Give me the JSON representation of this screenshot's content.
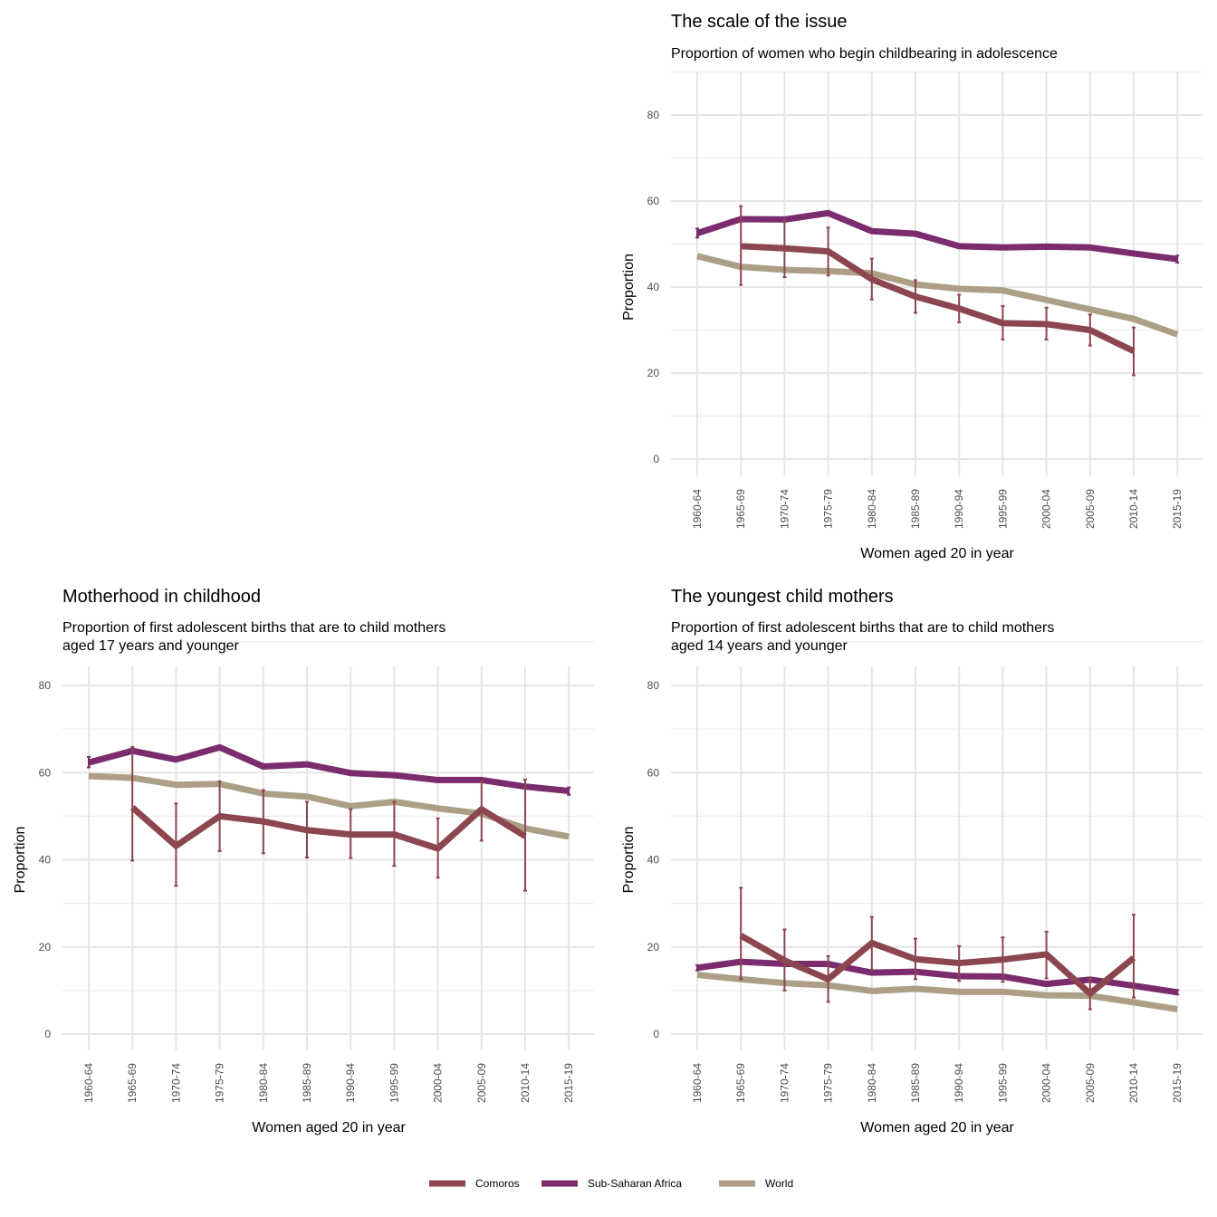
{
  "colors": {
    "Comoros": "#8c4650",
    "Sub-Saharan Africa": "#7b2c6e",
    "World": "#ac9f85"
  },
  "legend": [
    "Comoros",
    "Sub-Saharan Africa",
    "World"
  ],
  "chart_data": [
    {
      "type": "line",
      "title": "The scale of the issue",
      "subtitle": [
        "Proportion of women who begin childbearing in adolescence"
      ],
      "xlabel": "Women aged 20 in year",
      "ylabel": "Proportion",
      "ylim": [
        0,
        80
      ],
      "yticks": [
        0,
        20,
        40,
        60,
        80
      ],
      "categories": [
        "1960-64",
        "1965-69",
        "1970-74",
        "1975-79",
        "1980-84",
        "1985-89",
        "1990-94",
        "1995-99",
        "2000-04",
        "2005-09",
        "2010-14",
        "2015-19"
      ],
      "series": [
        {
          "name": "Sub-Saharan Africa",
          "values": [
            52.5,
            55.8,
            55.7,
            57.2,
            53.0,
            52.4,
            49.5,
            49.2,
            49.4,
            49.2,
            47.8,
            46.5
          ],
          "lower": [
            51.5,
            null,
            null,
            null,
            null,
            null,
            null,
            null,
            null,
            null,
            null,
            45.7
          ],
          "upper": [
            53.6,
            null,
            null,
            null,
            null,
            null,
            null,
            null,
            null,
            null,
            null,
            47.3
          ]
        },
        {
          "name": "World",
          "values": [
            47.2,
            44.7,
            44.0,
            43.7,
            43.2,
            40.6,
            39.6,
            39.2,
            37.0,
            34.8,
            32.6,
            29.0
          ]
        },
        {
          "name": "Comoros",
          "values": [
            null,
            49.5,
            49.0,
            48.3,
            41.8,
            37.8,
            35.0,
            31.6,
            31.4,
            30.0,
            25.1,
            null
          ],
          "lower": [
            null,
            40.5,
            42.3,
            42.7,
            37.1,
            34.0,
            31.8,
            27.8,
            27.8,
            26.4,
            19.5,
            null
          ],
          "upper": [
            null,
            58.8,
            55.7,
            53.8,
            46.6,
            41.6,
            38.2,
            35.6,
            35.2,
            33.6,
            30.6,
            null
          ]
        }
      ]
    },
    {
      "type": "line",
      "title": "Motherhood in childhood",
      "subtitle": [
        "Proportion of first adolescent births that are to child mothers",
        "aged 17 years and younger"
      ],
      "xlabel": "Women aged 20 in year",
      "ylabel": "Proportion",
      "ylim": [
        0,
        80
      ],
      "yticks": [
        0,
        20,
        40,
        60,
        80
      ],
      "categories": [
        "1960-64",
        "1965-69",
        "1970-74",
        "1975-79",
        "1980-84",
        "1985-89",
        "1990-94",
        "1995-99",
        "2000-04",
        "2005-09",
        "2010-14",
        "2015-19"
      ],
      "series": [
        {
          "name": "Sub-Saharan Africa",
          "values": [
            62.3,
            65.0,
            63.0,
            65.8,
            61.4,
            61.9,
            59.9,
            59.4,
            58.3,
            58.3,
            56.8,
            55.8
          ],
          "lower": [
            61.2,
            null,
            null,
            null,
            null,
            null,
            null,
            null,
            null,
            null,
            null,
            54.9
          ],
          "upper": [
            63.6,
            null,
            null,
            null,
            null,
            null,
            null,
            null,
            null,
            null,
            null,
            56.6
          ]
        },
        {
          "name": "World",
          "values": [
            59.2,
            58.8,
            57.2,
            57.4,
            55.2,
            54.5,
            52.3,
            53.3,
            51.8,
            50.6,
            47.2,
            45.3
          ]
        },
        {
          "name": "Comoros",
          "values": [
            null,
            52.0,
            43.2,
            50.0,
            48.8,
            46.8,
            45.8,
            45.8,
            42.6,
            51.6,
            45.4,
            null
          ],
          "lower": [
            null,
            39.8,
            34.0,
            42.0,
            41.5,
            40.5,
            40.4,
            38.6,
            35.9,
            44.4,
            32.9,
            null
          ],
          "upper": [
            null,
            65.9,
            52.9,
            58.0,
            56.0,
            53.3,
            51.6,
            53.3,
            49.5,
            58.0,
            58.4,
            null
          ]
        }
      ]
    },
    {
      "type": "line",
      "title": "The youngest child mothers",
      "subtitle": [
        "Proportion of first adolescent births that are to child mothers",
        "aged 14 years and younger"
      ],
      "xlabel": "Women aged 20 in year",
      "ylabel": "Proportion",
      "ylim": [
        0,
        80
      ],
      "yticks": [
        0,
        20,
        40,
        60,
        80
      ],
      "categories": [
        "1960-64",
        "1965-69",
        "1970-74",
        "1975-79",
        "1980-84",
        "1985-89",
        "1990-94",
        "1995-99",
        "2000-04",
        "2005-09",
        "2010-14",
        "2015-19"
      ],
      "series": [
        {
          "name": "Sub-Saharan Africa",
          "values": [
            15.2,
            16.6,
            16.1,
            16.1,
            14.1,
            14.3,
            13.3,
            13.2,
            11.5,
            12.5,
            11.1,
            9.6
          ],
          "lower": [
            14.6,
            null,
            null,
            null,
            null,
            null,
            null,
            null,
            null,
            null,
            null,
            9.1
          ],
          "upper": [
            15.8,
            null,
            null,
            null,
            null,
            null,
            null,
            null,
            null,
            null,
            null,
            10.1
          ]
        },
        {
          "name": "World",
          "values": [
            13.6,
            12.6,
            11.7,
            11.2,
            9.9,
            10.4,
            9.7,
            9.7,
            8.9,
            8.8,
            7.3,
            5.7
          ]
        },
        {
          "name": "Comoros",
          "values": [
            null,
            22.6,
            16.9,
            12.6,
            20.9,
            17.2,
            16.3,
            17.1,
            18.3,
            9.3,
            17.5,
            null
          ],
          "lower": [
            null,
            12.6,
            10.0,
            7.4,
            14.7,
            12.6,
            12.2,
            12.0,
            12.8,
            5.7,
            8.4,
            null
          ],
          "upper": [
            null,
            33.6,
            24.0,
            17.9,
            26.9,
            21.9,
            20.2,
            22.2,
            23.5,
            12.8,
            27.4,
            null
          ]
        }
      ]
    }
  ]
}
